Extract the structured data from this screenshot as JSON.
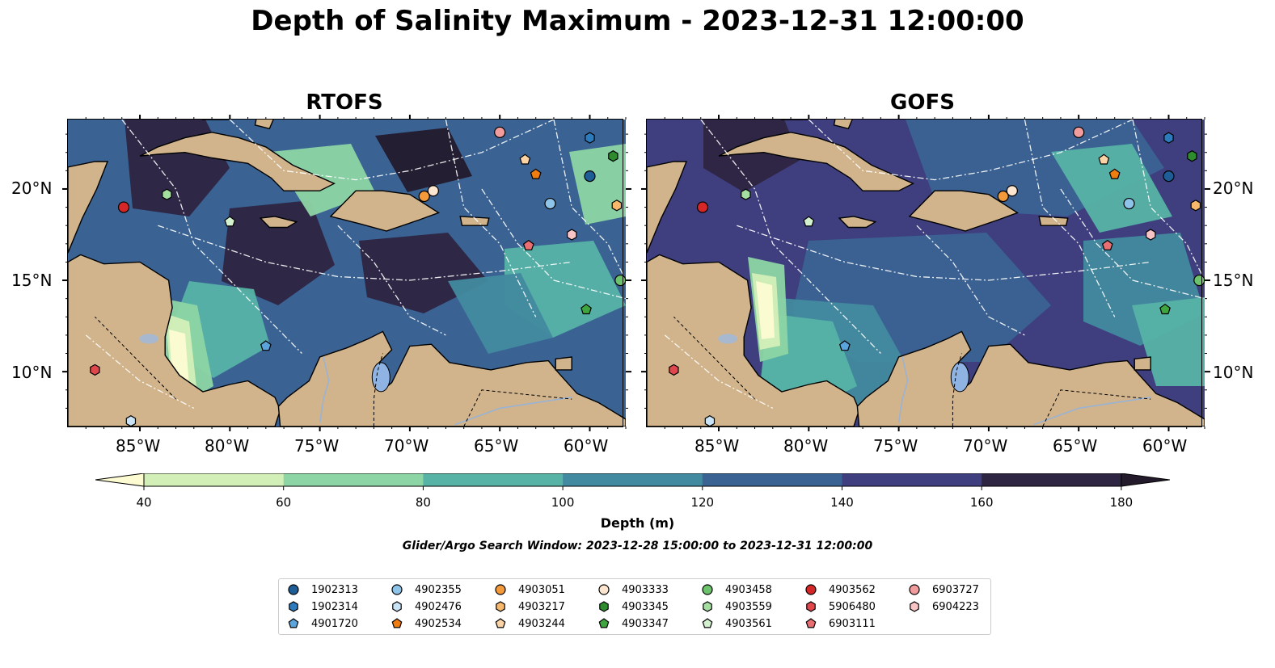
{
  "title": "Depth of Salinity Maximum - 2023-12-31 12:00:00",
  "panels": [
    {
      "title": "RTOFS"
    },
    {
      "title": "GOFS"
    }
  ],
  "lat_labels": [
    "20°N",
    "15°N",
    "10°N"
  ],
  "lon_labels": [
    "85°W",
    "80°W",
    "75°W",
    "70°W",
    "65°W",
    "60°W"
  ],
  "colorbar": {
    "label": "Depth (m)",
    "ticks": [
      "40",
      "60",
      "80",
      "100",
      "120",
      "140",
      "160",
      "180"
    ],
    "colors": [
      "#fdfbd2",
      "#d3efb8",
      "#8dd5a4",
      "#56b3a6",
      "#428a9f",
      "#3a6394",
      "#3f3e7e",
      "#2d2541",
      "#231a2c"
    ],
    "extend": "both"
  },
  "search_window": "Glider/Argo Search Window: 2023-12-28 15:00:00 to 2023-12-31 12:00:00",
  "land_color": "#d1b48c",
  "legend": [
    {
      "label": "1902313",
      "marker": "circle",
      "color": "#1f5d96"
    },
    {
      "label": "1902314",
      "marker": "hexagon",
      "color": "#2c7bbf"
    },
    {
      "label": "4901720",
      "marker": "pentagon",
      "color": "#5ba4dc"
    },
    {
      "label": "4902355",
      "marker": "circle",
      "color": "#8fc4ea"
    },
    {
      "label": "4902476",
      "marker": "hexagon",
      "color": "#c9e4f7"
    },
    {
      "label": "4902534",
      "marker": "pentagon",
      "color": "#f07d10"
    },
    {
      "label": "4903051",
      "marker": "circle",
      "color": "#f59a3a"
    },
    {
      "label": "4903217",
      "marker": "hexagon",
      "color": "#f8b86c"
    },
    {
      "label": "4903244",
      "marker": "pentagon",
      "color": "#fbd3a4"
    },
    {
      "label": "4903333",
      "marker": "circle",
      "color": "#fde6cf"
    },
    {
      "label": "4903345",
      "marker": "hexagon",
      "color": "#2e8b2e"
    },
    {
      "label": "4903347",
      "marker": "pentagon",
      "color": "#3fa53f"
    },
    {
      "label": "4903458",
      "marker": "circle",
      "color": "#6cc36c"
    },
    {
      "label": "4903559",
      "marker": "hexagon",
      "color": "#a4dea0"
    },
    {
      "label": "4903561",
      "marker": "pentagon",
      "color": "#d4f1cf"
    },
    {
      "label": "4903562",
      "marker": "circle",
      "color": "#d62728"
    },
    {
      "label": "5906480",
      "marker": "hexagon",
      "color": "#e0474c"
    },
    {
      "label": "6903111",
      "marker": "pentagon",
      "color": "#ea6f73"
    },
    {
      "label": "6903727",
      "marker": "circle",
      "color": "#f29c9e"
    },
    {
      "label": "6904223",
      "marker": "hexagon",
      "color": "#f8c4c5"
    }
  ],
  "floats": [
    {
      "label": "1902313",
      "lon": -60.0,
      "lat": 20.7
    },
    {
      "label": "1902314",
      "lon": -60.0,
      "lat": 22.8
    },
    {
      "label": "4901720",
      "lon": -78.0,
      "lat": 11.4
    },
    {
      "label": "4902355",
      "lon": -62.2,
      "lat": 19.2
    },
    {
      "label": "4902476",
      "lon": -85.5,
      "lat": 7.3
    },
    {
      "label": "4902534",
      "lon": -63.0,
      "lat": 20.8
    },
    {
      "label": "4903051",
      "lon": -69.2,
      "lat": 19.6
    },
    {
      "label": "4903217",
      "lon": -58.5,
      "lat": 19.1
    },
    {
      "label": "4903244",
      "lon": -63.6,
      "lat": 21.6
    },
    {
      "label": "4903333",
      "lon": -68.7,
      "lat": 19.9
    },
    {
      "label": "4903345",
      "lon": -58.7,
      "lat": 21.8
    },
    {
      "label": "4903347",
      "lon": -60.2,
      "lat": 13.4
    },
    {
      "label": "4903458",
      "lon": -58.3,
      "lat": 15.0
    },
    {
      "label": "4903559",
      "lon": -83.5,
      "lat": 19.7
    },
    {
      "label": "4903561",
      "lon": -80.0,
      "lat": 18.2
    },
    {
      "label": "4903562",
      "lon": -85.9,
      "lat": 19.0
    },
    {
      "label": "5906480",
      "lon": -87.5,
      "lat": 10.1
    },
    {
      "label": "6903111",
      "lon": -63.4,
      "lat": 16.9
    },
    {
      "label": "6903727",
      "lon": -65.0,
      "lat": 23.1
    },
    {
      "label": "6904223",
      "lon": -61.0,
      "lat": 17.5
    }
  ]
}
